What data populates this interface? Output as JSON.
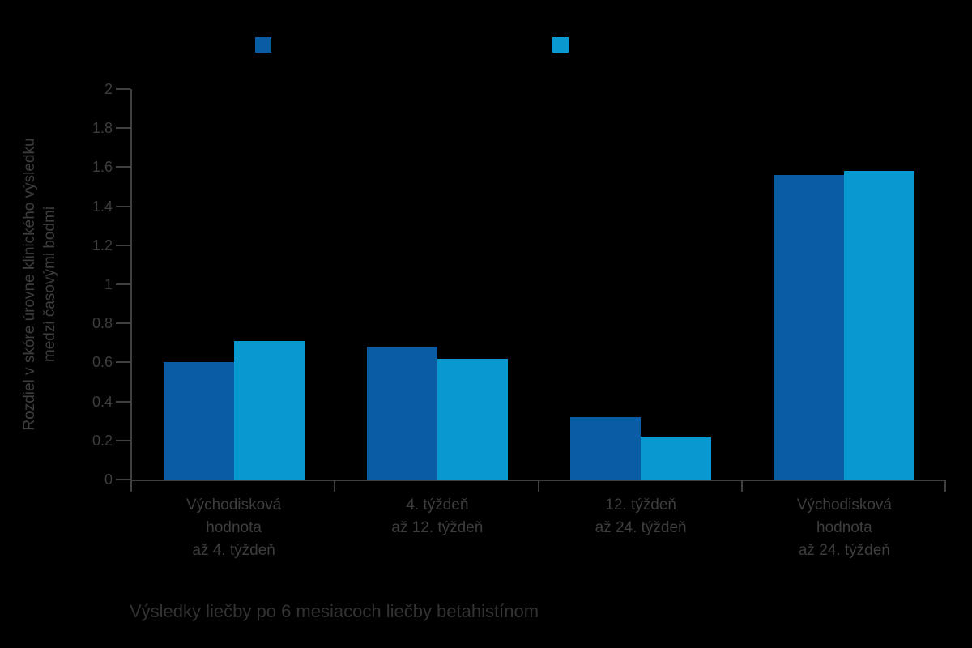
{
  "background": "#000000",
  "text_color": "#3d3d3d",
  "axis_color": "#404040",
  "caption": "Výsledky liečby po 6 mesiacoch liečby betahistínom",
  "legend": {
    "items": [
      {
        "name": "series-1",
        "color": "#0a5ca3",
        "label": ""
      },
      {
        "name": "series-2",
        "color": "#0899d1",
        "label": ""
      }
    ]
  },
  "chart_data": {
    "type": "bar",
    "title": "",
    "xlabel": "",
    "ylabel": "Rozdiel v skóre úrovne klinického výsledku medzi časovými bodmi",
    "ylabel_lines": [
      "Rozdiel v skóre úrovne klinického výsledku",
      "medzi časovými bodmi"
    ],
    "ylim": [
      0,
      2
    ],
    "ytick_labels": [
      "0",
      "0.2",
      "0.4",
      "0.6",
      "0.8",
      "1",
      "1.2",
      "1.4",
      "1.6",
      "1.8",
      "2"
    ],
    "grid": false,
    "legend_position": "top",
    "categories": [
      [
        "Východisková",
        "hodnota",
        "až 4. týždeň"
      ],
      [
        "4. týždeň",
        "až 12. týždeň"
      ],
      [
        "12. týždeň",
        "až 24. týždeň"
      ],
      [
        "Východisková",
        "hodnota",
        "až 24. týždeň"
      ]
    ],
    "series": [
      {
        "name": "series-1",
        "color": "#0a5ca3",
        "values": [
          0.6,
          0.68,
          0.32,
          1.56
        ]
      },
      {
        "name": "series-2",
        "color": "#0899d1",
        "values": [
          0.71,
          0.62,
          0.22,
          1.58
        ]
      }
    ]
  }
}
